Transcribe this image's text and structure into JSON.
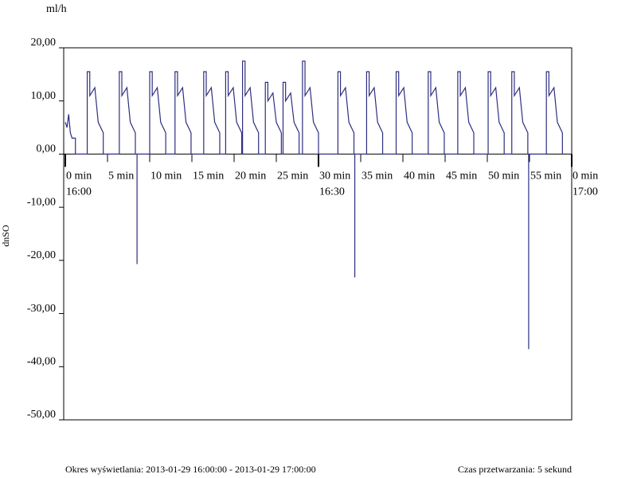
{
  "chart_data": {
    "type": "line",
    "unit": "ml/h",
    "y_label": "dnSO",
    "color": "#2e2e82",
    "xlim": [
      0,
      60
    ],
    "ylim": [
      -50,
      20
    ],
    "yticks": [
      {
        "value": 20,
        "label": "20,00"
      },
      {
        "value": 10,
        "label": "10,00"
      },
      {
        "value": 0,
        "label": "0,00"
      },
      {
        "value": -10,
        "label": "-10,00"
      },
      {
        "value": -20,
        "label": "-20,00"
      },
      {
        "value": -30,
        "label": "-30,00"
      },
      {
        "value": -40,
        "label": "-40,00"
      },
      {
        "value": -50,
        "label": "-50,00"
      }
    ],
    "xticks": [
      {
        "value": 0,
        "label": "0 min"
      },
      {
        "value": 5,
        "label": "5 min"
      },
      {
        "value": 10,
        "label": "10 min"
      },
      {
        "value": 15,
        "label": "15 min"
      },
      {
        "value": 20,
        "label": "20 min"
      },
      {
        "value": 25,
        "label": "25 min"
      },
      {
        "value": 30,
        "label": "30 min"
      },
      {
        "value": 35,
        "label": "35 min"
      },
      {
        "value": 40,
        "label": "40 min"
      },
      {
        "value": 45,
        "label": "45 min"
      },
      {
        "value": 50,
        "label": "50 min"
      },
      {
        "value": 55,
        "label": "55 min"
      },
      {
        "value": 60,
        "label": "0 min"
      }
    ],
    "time_ticks": [
      {
        "value": 0,
        "label": "16:00"
      },
      {
        "value": 30,
        "label": "16:30"
      },
      {
        "value": 60,
        "label": "17:00"
      }
    ],
    "x": [
      0,
      0.2,
      0.4,
      0.6,
      0.8,
      1.2,
      1.2,
      2.6,
      2.6,
      2.9,
      2.9,
      3.5,
      3.9,
      4.5,
      4.5,
      6.4,
      6.4,
      6.7,
      6.7,
      7.3,
      7.7,
      8.3,
      8.3,
      8.5,
      8.5,
      8.5,
      10,
      10,
      10.3,
      10.3,
      10.9,
      11.3,
      11.9,
      11.9,
      13,
      13,
      13.3,
      13.3,
      13.9,
      14.3,
      14.9,
      14.9,
      16.4,
      16.4,
      16.7,
      16.7,
      17.3,
      17.7,
      18.3,
      18.3,
      19,
      19,
      19.3,
      19.3,
      19.9,
      20.3,
      20.9,
      20.9,
      21,
      21,
      21.3,
      21.3,
      21.9,
      22.3,
      22.9,
      22.9,
      23.7,
      23.7,
      24,
      24,
      24.6,
      25,
      25.6,
      25.6,
      25.8,
      25.8,
      26.1,
      26.1,
      26.7,
      27.1,
      27.7,
      27.7,
      28.1,
      28.1,
      28.4,
      28.4,
      29,
      29.4,
      30,
      30,
      32.3,
      32.3,
      32.6,
      32.6,
      33.2,
      33.6,
      34.2,
      34.2,
      34.3,
      34.3,
      34.3,
      35.7,
      35.7,
      36,
      36,
      36.6,
      37,
      37.6,
      37.6,
      39.2,
      39.2,
      39.5,
      39.5,
      40.1,
      40.5,
      41.1,
      41.1,
      43,
      43,
      43.3,
      43.3,
      43.9,
      44.3,
      44.9,
      44.9,
      46.5,
      46.5,
      46.8,
      46.8,
      47.4,
      47.8,
      48.4,
      48.4,
      50.1,
      50.1,
      50.4,
      50.4,
      51,
      51.4,
      52,
      52,
      52.9,
      52.9,
      53.2,
      53.2,
      53.8,
      54.2,
      54.8,
      54.8,
      54.9,
      54.9,
      54.9,
      57,
      57,
      57.3,
      57.3,
      57.9,
      58.3,
      58.9,
      58.9
    ],
    "values": [
      6,
      5,
      7.5,
      4,
      3,
      3,
      0,
      0,
      15.5,
      15.5,
      11,
      12.5,
      6,
      4,
      0,
      0,
      15.5,
      15.5,
      11,
      12.5,
      6,
      4,
      0,
      0,
      -20.7,
      0,
      0,
      15.5,
      15.5,
      11,
      12.5,
      6,
      4,
      0,
      0,
      15.5,
      15.5,
      11,
      12.5,
      6,
      4,
      0,
      0,
      15.5,
      15.5,
      11,
      12.5,
      6,
      4,
      0,
      0,
      15.5,
      15.5,
      11,
      12.5,
      6,
      4,
      0,
      0,
      17.5,
      17.5,
      11,
      12.5,
      6,
      4,
      0,
      0,
      13.5,
      13.5,
      10,
      11.5,
      6,
      4,
      0,
      0,
      13.5,
      13.5,
      10,
      11.5,
      6,
      4,
      0,
      0,
      17.5,
      17.5,
      11,
      12.5,
      6,
      4,
      0,
      0,
      15.5,
      15.5,
      11,
      12.5,
      6,
      4,
      0,
      0,
      -23.2,
      0,
      0,
      15.5,
      15.5,
      11,
      12.5,
      6,
      4,
      0,
      0,
      15.5,
      15.5,
      11,
      12.5,
      6,
      4,
      0,
      0,
      15.5,
      15.5,
      11,
      12.5,
      6,
      4,
      0,
      0,
      15.5,
      15.5,
      11,
      12.5,
      6,
      4,
      0,
      0,
      15.5,
      15.5,
      11,
      12.5,
      6,
      4,
      0,
      0,
      15.5,
      15.5,
      11,
      12.5,
      6,
      4,
      0,
      0,
      -36.7,
      0,
      0,
      15.5,
      15.5,
      11,
      12.5,
      6,
      4,
      0
    ]
  },
  "footer": {
    "period": "Okres wyświetlania: 2013-01-29 16:00:00 - 2013-01-29 17:00:00",
    "processing": "Czas przetwarzania: 5 sekund"
  }
}
